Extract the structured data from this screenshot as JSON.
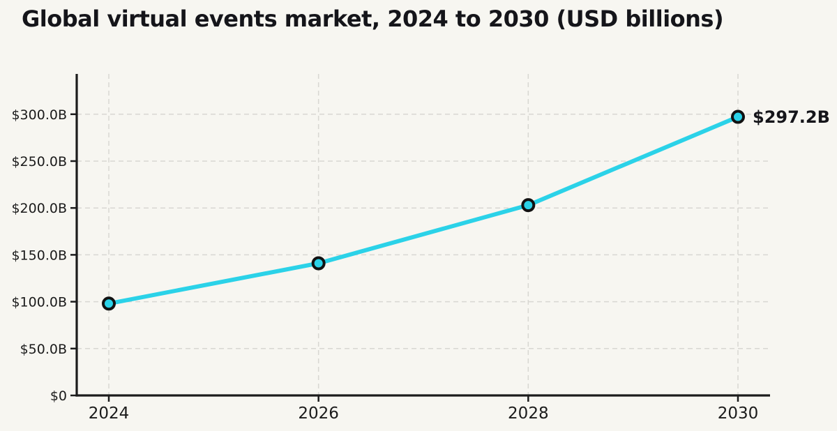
{
  "chart_data": {
    "type": "line",
    "title": "Global virtual events market, 2024 to 2030 (USD billions)",
    "xlabel": "",
    "ylabel": "",
    "x": [
      2024,
      2026,
      2028,
      2030
    ],
    "x_tick_labels": [
      "2024",
      "2026",
      "2028",
      "2030"
    ],
    "series": [
      {
        "name": "Global virtual events market (USD billions)",
        "values": [
          98,
          141,
          203,
          297.2
        ]
      }
    ],
    "y_ticks": [
      0,
      50,
      100,
      150,
      200,
      250,
      300
    ],
    "y_tick_labels": [
      "$0",
      "$50.0B",
      "$100.0B",
      "$150.0B",
      "$200.0B",
      "$250.0B",
      "$300.0B"
    ],
    "ylim": [
      0,
      343
    ],
    "grid": true,
    "grid_style": "dashed",
    "legend": null,
    "annotation": {
      "x": 2030,
      "y": 297.2,
      "label": "$297.2B"
    },
    "colors": {
      "line": "#2bd2e8",
      "marker_fill": "#2bd2e8",
      "marker_edge": "#121212",
      "grid": "#d8d7d2",
      "axis": "#1c1c1c",
      "text": "#15151a",
      "tick_text": "#1b1b1b",
      "background": "#f7f6f1"
    }
  }
}
